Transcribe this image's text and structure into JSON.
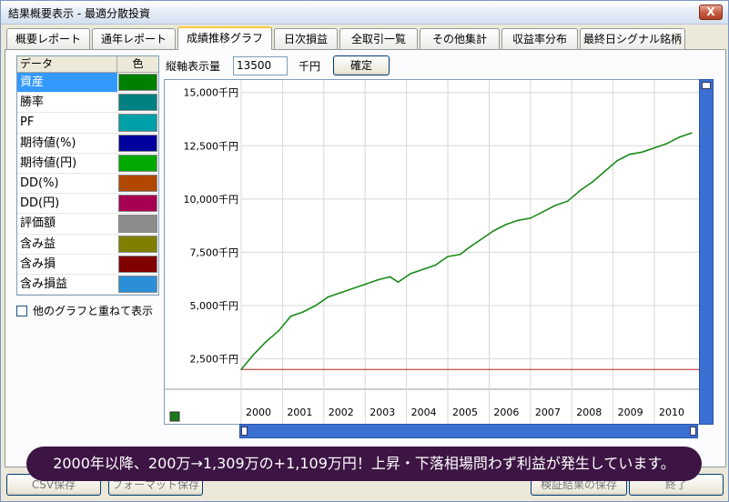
{
  "window": {
    "title": "結果概要表示 - 最適分散投資",
    "close_label": "X"
  },
  "tabs": [
    {
      "label": "概要レポート",
      "active": false
    },
    {
      "label": "通年レポート",
      "active": false
    },
    {
      "label": "成績推移グラフ",
      "active": true
    },
    {
      "label": "日次損益",
      "active": false
    },
    {
      "label": "全取引一覧",
      "active": false
    },
    {
      "label": "その他集計",
      "active": false
    },
    {
      "label": "収益率分布",
      "active": false
    },
    {
      "label": "最終日シグナル銘柄",
      "active": false
    }
  ],
  "legend": {
    "header_data": "データ",
    "header_color": "色",
    "rows": [
      {
        "label": "資産",
        "color": "#008000",
        "selected": true
      },
      {
        "label": "勝率",
        "color": "#008080",
        "selected": false
      },
      {
        "label": "PF",
        "color": "#00a0a8",
        "selected": false
      },
      {
        "label": "期待値(%)",
        "color": "#00009c",
        "selected": false
      },
      {
        "label": "期待値(円)",
        "color": "#00aa00",
        "selected": false
      },
      {
        "label": "DD(%)",
        "color": "#b04800",
        "selected": false
      },
      {
        "label": "DD(円)",
        "color": "#a80050",
        "selected": false
      },
      {
        "label": "評価額",
        "color": "#8c8c8c",
        "selected": false
      },
      {
        "label": "含み益",
        "color": "#808000",
        "selected": false
      },
      {
        "label": "含み損",
        "color": "#800000",
        "selected": false
      },
      {
        "label": "含み損益",
        "color": "#2a8fd8",
        "selected": false
      }
    ]
  },
  "overlay_checkbox": {
    "label": "他のグラフと重ねて表示",
    "checked": false
  },
  "axis_control": {
    "label": "縦軸表示量",
    "value": "13500",
    "unit": "千円",
    "confirm_label": "確定"
  },
  "chart_data": {
    "type": "line",
    "ylim": [
      1500,
      15500
    ],
    "yticks": [
      "2,500千円",
      "5,000千円",
      "7,500千円",
      "10,000千円",
      "12,500千円",
      "15,000千円"
    ],
    "ytick_values": [
      2500,
      5000,
      7500,
      10000,
      12500,
      15000
    ],
    "xlabels": [
      "2000",
      "2001",
      "2002",
      "2003",
      "2004",
      "2005",
      "2006",
      "2007",
      "2008",
      "2009",
      "2010"
    ],
    "reference_line": 2000,
    "series": [
      {
        "color": "#1a8a1a",
        "x": [
          2000.0,
          2000.3,
          2000.6,
          2000.9,
          2001.2,
          2001.5,
          2001.8,
          2002.1,
          2002.4,
          2002.7,
          2003.0,
          2003.3,
          2003.6,
          2003.8,
          2004.1,
          2004.4,
          2004.7,
          2005.0,
          2005.3,
          2005.5,
          2005.8,
          2006.1,
          2006.4,
          2006.7,
          2007.0,
          2007.3,
          2007.6,
          2007.9,
          2008.2,
          2008.5,
          2008.8,
          2009.1,
          2009.4,
          2009.7,
          2010.0,
          2010.3,
          2010.6,
          2010.9
        ],
        "y": [
          2000,
          2700,
          3300,
          3800,
          4500,
          4700,
          5000,
          5400,
          5600,
          5800,
          6000,
          6200,
          6350,
          6100,
          6500,
          6700,
          6900,
          7300,
          7400,
          7700,
          8100,
          8500,
          8800,
          9000,
          9100,
          9400,
          9700,
          9900,
          10400,
          10800,
          11300,
          11800,
          12100,
          12200,
          12400,
          12600,
          12900,
          13100
        ]
      }
    ]
  },
  "buttons": {
    "csv": "CSV保存",
    "format": "フォーマット保存",
    "save_results": "検証結果の保存",
    "close": "終了"
  },
  "caption": "2000年以降、200万→1,309万の+1,109万円！上昇・下落相場問わず利益が発生しています。"
}
